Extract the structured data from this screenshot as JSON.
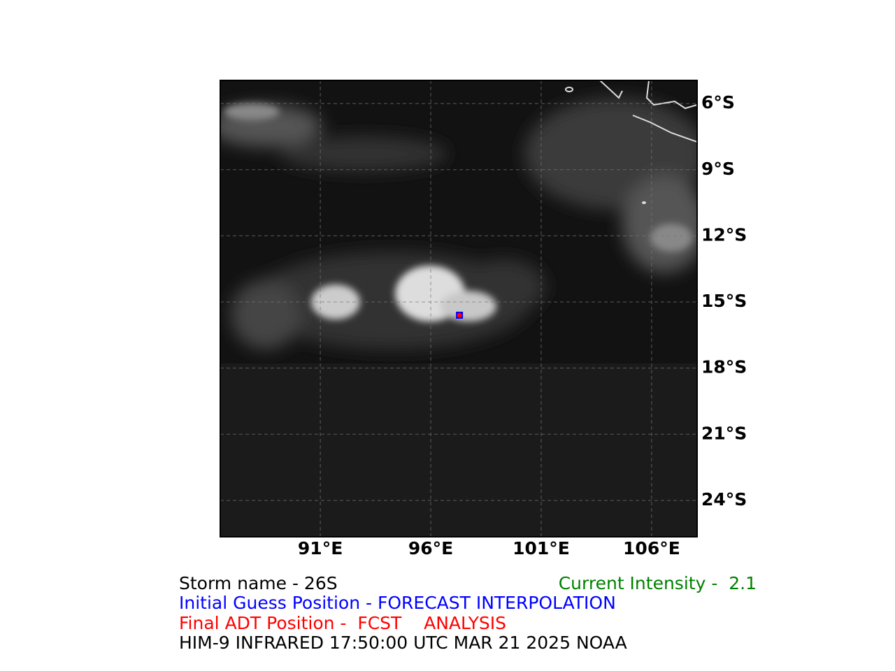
{
  "map": {
    "xlim": [
      86.47,
      108.06
    ],
    "ylim": [
      -25.65,
      -4.95
    ],
    "xticks": [
      {
        "value": 91,
        "label": "91°E"
      },
      {
        "value": 96,
        "label": "96°E"
      },
      {
        "value": 101,
        "label": "101°E"
      },
      {
        "value": 106,
        "label": "106°E"
      }
    ],
    "yticks": [
      {
        "value": -6,
        "label": "6°S"
      },
      {
        "value": -9,
        "label": "9°S"
      },
      {
        "value": -12,
        "label": "12°S"
      },
      {
        "value": -15,
        "label": "15°S"
      },
      {
        "value": -18,
        "label": "18°S"
      },
      {
        "value": -21,
        "label": "21°S"
      },
      {
        "value": -24,
        "label": "24°S"
      }
    ],
    "initial_guess": {
      "lon": 97.3,
      "lat": -15.6,
      "color": "#0000ff"
    },
    "final_position": {
      "lon": 97.3,
      "lat": -15.6,
      "color": "#ff0000"
    }
  },
  "footer": {
    "storm_name": "Storm name - 26S",
    "current_intensity": "Current Intensity -  2.1",
    "initial_guess": "Initial Guess Position - FORECAST INTERPOLATION",
    "final_position": "Final ADT Position -  FCST    ANALYSIS",
    "source": "HIM-9 INFRARED 17:50:00 UTC MAR 21 2025 NOAA"
  }
}
